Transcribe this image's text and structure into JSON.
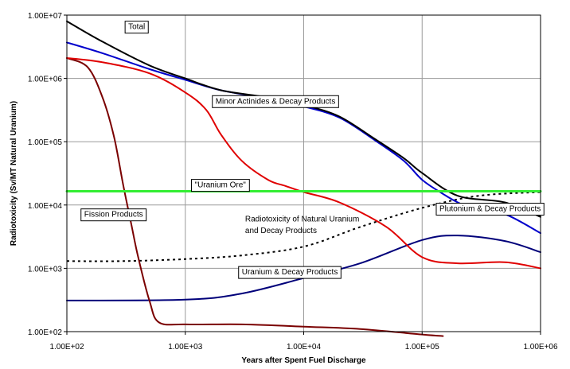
{
  "chart_data": {
    "type": "line",
    "xlabel": "Years after Spent Fuel Discharge",
    "ylabel": "Radiotoxicity (Sv/MT Natural Uranium)",
    "xscale": "log",
    "yscale": "log",
    "xlim": [
      100,
      1000000
    ],
    "ylim": [
      100,
      10000000
    ],
    "grid": true,
    "xtick_labels": [
      "1.00E+02",
      "1.00E+03",
      "1.00E+04",
      "1.00E+05",
      "1.00E+06"
    ],
    "ytick_labels": [
      "1.00E+02",
      "1.00E+03",
      "1.00E+04",
      "1.00E+05",
      "1.00E+06",
      "1.00E+07"
    ],
    "series": [
      {
        "name": "Total",
        "color": "#000000",
        "style": "solid",
        "x": [
          100,
          200,
          500,
          1000,
          2000,
          5000,
          10000,
          20000,
          40000,
          70000,
          100000,
          200000,
          500000,
          1000000
        ],
        "y": [
          8000000,
          3800000,
          1600000,
          1000000,
          650000,
          500000,
          380000,
          250000,
          110000,
          55000,
          32000,
          14000,
          11000,
          6500
        ]
      },
      {
        "name": "Minor Actinides & Decay Products",
        "color": "#0000cc",
        "style": "solid",
        "x": [
          100,
          200,
          500,
          1000,
          2000,
          5000,
          10000,
          20000,
          40000,
          70000,
          100000,
          150000,
          200000,
          300000,
          500000,
          1000000
        ],
        "y": [
          3700000,
          2500000,
          1400000,
          950000,
          650000,
          480000,
          360000,
          240000,
          105000,
          50000,
          25000,
          15000,
          11000,
          8000,
          7200,
          3600
        ]
      },
      {
        "name": "Plutonium & Decay Products",
        "color": "#e00000",
        "style": "solid",
        "x": [
          100,
          200,
          500,
          1000,
          1500,
          2000,
          3000,
          5000,
          7000,
          10000,
          20000,
          50000,
          100000,
          200000,
          500000,
          1000000
        ],
        "y": [
          2100000,
          1800000,
          1200000,
          600000,
          320000,
          130000,
          50000,
          25000,
          20000,
          16000,
          11000,
          4500,
          1500,
          1200,
          1250,
          1000
        ]
      },
      {
        "name": "Fission Products",
        "color": "#7a0000",
        "style": "solid",
        "x": [
          100,
          150,
          200,
          250,
          300,
          350,
          400,
          500,
          600,
          1000,
          3000,
          10000,
          30000,
          100000,
          150000
        ],
        "y": [
          2100000,
          1500000,
          500000,
          120000,
          20000,
          5000,
          1500,
          300,
          140,
          130,
          130,
          120,
          110,
          90,
          85
        ]
      },
      {
        "name": "Uranium & Decay Products",
        "color": "#00007a",
        "style": "solid",
        "x": [
          100,
          1000,
          3000,
          10000,
          30000,
          100000,
          200000,
          500000,
          1000000
        ],
        "y": [
          310,
          320,
          400,
          700,
          1200,
          2800,
          3300,
          2700,
          1800
        ]
      },
      {
        "name": "Radiotoxicity of Natural Uranium and Decay Products",
        "color": "#000000",
        "style": "dotted",
        "x": [
          100,
          300,
          1000,
          3000,
          10000,
          30000,
          100000,
          300000,
          1000000
        ],
        "y": [
          1300,
          1300,
          1400,
          1600,
          2200,
          4500,
          9000,
          14000,
          16000
        ]
      },
      {
        "name": "\"Uranium Ore\"",
        "color": "#33ee33",
        "style": "solid",
        "x": [
          100,
          1000000
        ],
        "y": [
          16500,
          16500
        ]
      }
    ],
    "annotations": [
      {
        "text": "Total",
        "x": 330,
        "y": 6000000
      },
      {
        "text": "Minor Actinides & Decay Products",
        "x": 1800,
        "y": 400000
      },
      {
        "text": "\"Uranium Ore\"",
        "x": 1200,
        "y": 19000
      },
      {
        "text": "Fission Products",
        "x": 140,
        "y": 6500
      },
      {
        "text": "Radiotoxicity of Natural Uranium",
        "x": 3200,
        "y": 5500
      },
      {
        "text": "and Decay Products",
        "x": 3200,
        "y": 3600
      },
      {
        "text": "Plutonium & Decay Products",
        "x": 140000,
        "y": 8000
      },
      {
        "text": "Uranium & Decay Products",
        "x": 3000,
        "y": 800
      }
    ]
  }
}
